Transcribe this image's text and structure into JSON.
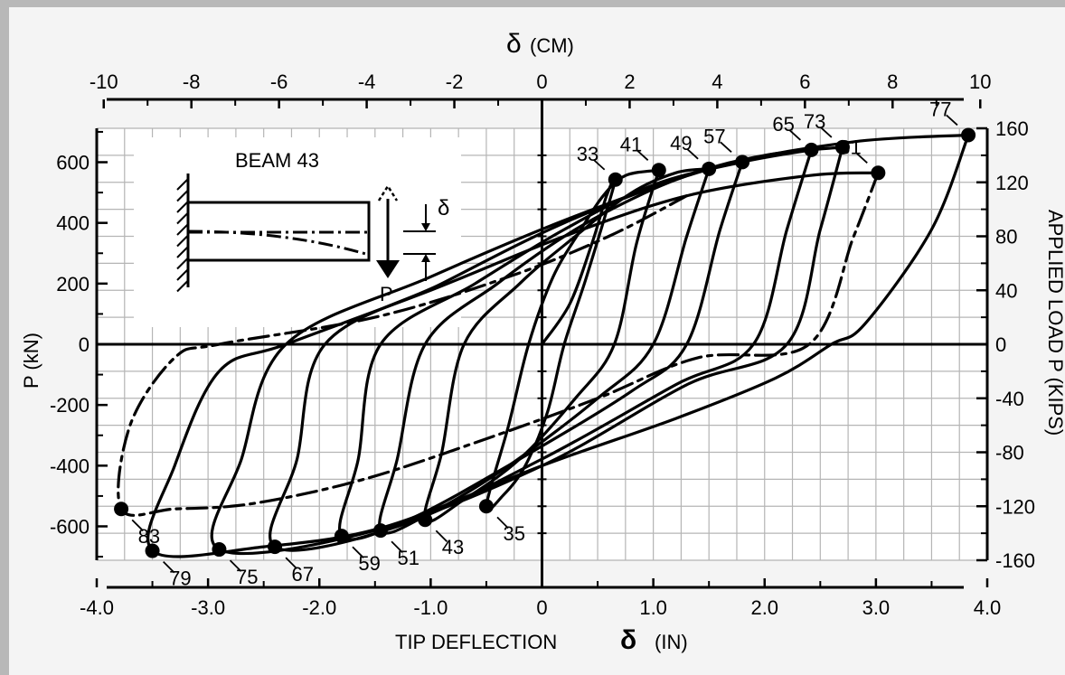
{
  "chart_data": {
    "type": "line",
    "title": "",
    "top_axis": {
      "label_symbol": "δ",
      "label_unit": "(CM)",
      "ticks": [
        -10,
        -8,
        -6,
        -4,
        -2,
        0,
        2,
        4,
        6,
        8,
        10
      ],
      "range": [
        -10.16,
        10.16
      ]
    },
    "bottom_axis": {
      "label_text": "TIP DEFLECTION",
      "label_symbol": "δ",
      "label_unit": "(IN)",
      "ticks": [
        "-4.0",
        "-3.0",
        "-2.0",
        "-1.0",
        "0",
        "1.0",
        "2.0",
        "3.0",
        "4.0"
      ],
      "range": [
        -4.0,
        4.0
      ]
    },
    "left_axis": {
      "label": "P (kN)",
      "ticks": [
        600,
        400,
        200,
        0,
        -200,
        -400,
        -600
      ],
      "range": [
        -711.7,
        711.7
      ]
    },
    "right_axis": {
      "label": "APPLIED LOAD P (KIPS)",
      "ticks": [
        160,
        120,
        80,
        40,
        0,
        -40,
        -80,
        -120,
        -160
      ],
      "range": [
        -160,
        160
      ]
    },
    "grid": true,
    "inset": {
      "title": "BEAM 43",
      "load_label": "P",
      "deflection_label": "δ"
    },
    "peak_points": [
      {
        "label": "33",
        "x": 0.66,
        "y": 122
      },
      {
        "label": "41",
        "x": 1.05,
        "y": 129
      },
      {
        "label": "49",
        "x": 1.5,
        "y": 130
      },
      {
        "label": "57",
        "x": 1.8,
        "y": 135
      },
      {
        "label": "65",
        "x": 2.42,
        "y": 144
      },
      {
        "label": "73",
        "x": 2.7,
        "y": 146
      },
      {
        "label": "77",
        "x": 3.83,
        "y": 155
      },
      {
        "label": "81",
        "x": 3.02,
        "y": 127
      },
      {
        "label": "35",
        "x": -0.5,
        "y": -120
      },
      {
        "label": "43",
        "x": -1.05,
        "y": -130
      },
      {
        "label": "51",
        "x": -1.45,
        "y": -138
      },
      {
        "label": "59",
        "x": -1.8,
        "y": -142
      },
      {
        "label": "67",
        "x": -2.4,
        "y": -150
      },
      {
        "label": "75",
        "x": -2.9,
        "y": -152
      },
      {
        "label": "79",
        "x": -3.5,
        "y": -153
      },
      {
        "label": "83",
        "x": -3.78,
        "y": -122
      }
    ],
    "series": [
      {
        "dashed": false,
        "points": [
          [
            0,
            0
          ],
          [
            0.25,
            30
          ],
          [
            0.45,
            75
          ],
          [
            0.58,
            110
          ],
          [
            0.66,
            122
          ],
          [
            0.4,
            50
          ],
          [
            0.2,
            0
          ],
          [
            0.05,
            -50
          ],
          [
            -0.15,
            -90
          ],
          [
            -0.35,
            -112
          ],
          [
            -0.5,
            -120
          ],
          [
            -0.3,
            -60
          ],
          [
            -0.12,
            0
          ],
          [
            0.1,
            50
          ],
          [
            0.35,
            85
          ],
          [
            0.55,
            110
          ],
          [
            0.75,
            125
          ],
          [
            1.05,
            129
          ]
        ]
      },
      {
        "dashed": false,
        "points": [
          [
            1.05,
            129
          ],
          [
            0.85,
            75
          ],
          [
            0.65,
            0
          ],
          [
            0.3,
            -40
          ],
          [
            -0.2,
            -85
          ],
          [
            -0.7,
            -115
          ],
          [
            -1.05,
            -130
          ],
          [
            -0.9,
            -80
          ],
          [
            -0.7,
            0
          ],
          [
            -0.2,
            45
          ],
          [
            0.3,
            80
          ],
          [
            0.8,
            112
          ],
          [
            1.2,
            127
          ],
          [
            1.5,
            130
          ]
        ]
      },
      {
        "dashed": false,
        "points": [
          [
            1.5,
            130
          ],
          [
            1.3,
            80
          ],
          [
            1.0,
            0
          ],
          [
            0.5,
            -40
          ],
          [
            -0.3,
            -90
          ],
          [
            -1.0,
            -125
          ],
          [
            -1.45,
            -138
          ],
          [
            -1.3,
            -85
          ],
          [
            -1.05,
            0
          ],
          [
            -0.4,
            45
          ],
          [
            0.3,
            85
          ],
          [
            1.0,
            115
          ],
          [
            1.5,
            130
          ],
          [
            1.8,
            135
          ]
        ]
      },
      {
        "dashed": false,
        "points": [
          [
            1.8,
            135
          ],
          [
            1.6,
            85
          ],
          [
            1.3,
            0
          ],
          [
            0.8,
            -35
          ],
          [
            -0.2,
            -85
          ],
          [
            -1.2,
            -130
          ],
          [
            -1.8,
            -142
          ],
          [
            -1.65,
            -85
          ],
          [
            -1.45,
            0
          ],
          [
            -0.6,
            45
          ],
          [
            0.2,
            85
          ],
          [
            1.0,
            118
          ],
          [
            1.8,
            135
          ],
          [
            2.42,
            144
          ]
        ]
      },
      {
        "dashed": false,
        "points": [
          [
            2.42,
            144
          ],
          [
            2.2,
            85
          ],
          [
            1.9,
            0
          ],
          [
            1.2,
            -30
          ],
          [
            0.0,
            -85
          ],
          [
            -1.3,
            -135
          ],
          [
            -2.4,
            -150
          ],
          [
            -2.2,
            -85
          ],
          [
            -1.95,
            0
          ],
          [
            -0.9,
            45
          ],
          [
            0.2,
            90
          ],
          [
            1.3,
            125
          ],
          [
            2.0,
            140
          ],
          [
            2.7,
            146
          ]
        ]
      },
      {
        "dashed": false,
        "points": [
          [
            2.7,
            146
          ],
          [
            2.5,
            85
          ],
          [
            2.2,
            0
          ],
          [
            1.3,
            -30
          ],
          [
            0.0,
            -90
          ],
          [
            -1.5,
            -138
          ],
          [
            -2.9,
            -152
          ],
          [
            -2.7,
            -85
          ],
          [
            -2.3,
            0
          ],
          [
            -1.0,
            50
          ],
          [
            0.3,
            95
          ],
          [
            1.6,
            132
          ],
          [
            2.8,
            150
          ],
          [
            3.83,
            155
          ]
        ]
      },
      {
        "dashed": false,
        "points": [
          [
            3.83,
            155
          ],
          [
            3.5,
            85
          ],
          [
            2.9,
            15
          ],
          [
            2.6,
            0
          ],
          [
            2.1,
            -25
          ],
          [
            1.2,
            -55
          ],
          [
            0.0,
            -90
          ],
          [
            -1.4,
            -135
          ],
          [
            -2.5,
            -150
          ],
          [
            -3.5,
            -153
          ],
          [
            -3.3,
            -90
          ],
          [
            -2.9,
            -20
          ],
          [
            -2.3,
            0
          ],
          [
            -1.0,
            40
          ],
          [
            0.2,
            80
          ],
          [
            1.3,
            110
          ],
          [
            2.4,
            125
          ],
          [
            3.02,
            127
          ]
        ]
      },
      {
        "dashed": true,
        "points": [
          [
            3.02,
            127
          ],
          [
            2.8,
            80
          ],
          [
            2.4,
            0
          ],
          [
            1.4,
            -10
          ],
          [
            0.5,
            -40
          ],
          [
            -0.5,
            -70
          ],
          [
            -1.6,
            -100
          ],
          [
            -2.6,
            -118
          ],
          [
            -3.3,
            -122
          ],
          [
            -3.78,
            -122
          ],
          [
            -3.7,
            -60
          ],
          [
            -3.3,
            -10
          ],
          [
            -2.9,
            0
          ],
          [
            -1.5,
            20
          ],
          [
            -0.3,
            50
          ],
          [
            0.6,
            80
          ],
          [
            1.3,
            110
          ]
        ]
      }
    ]
  }
}
